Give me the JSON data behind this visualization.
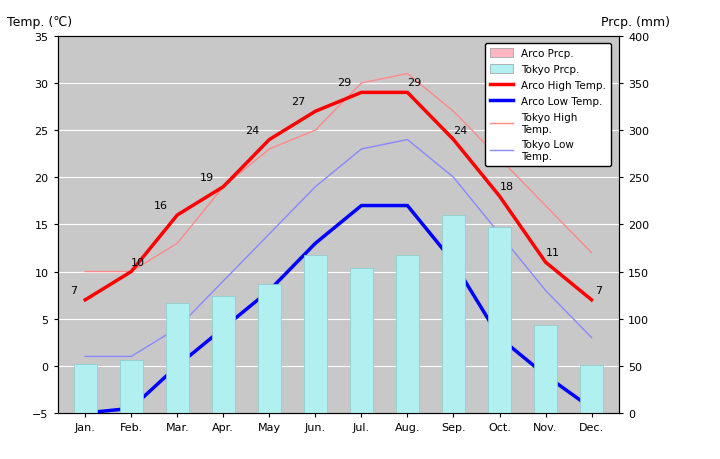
{
  "months": [
    "Jan.",
    "Feb.",
    "Mar.",
    "Apr.",
    "May",
    "Jun.",
    "Jul.",
    "Aug.",
    "Sep.",
    "Oct.",
    "Nov.",
    "Dec."
  ],
  "arco_high_temp": [
    7,
    10,
    16,
    19,
    24,
    27,
    29,
    29,
    24,
    18,
    11,
    7
  ],
  "arco_low_temp": [
    -5,
    -4.5,
    0,
    4,
    8,
    13,
    17,
    17,
    11,
    3,
    -1,
    -4.5
  ],
  "tokyo_high_temp": [
    10,
    10,
    13,
    19,
    23,
    25,
    30,
    31,
    27,
    22,
    17,
    12
  ],
  "tokyo_low_temp": [
    1,
    1,
    4,
    9,
    14,
    19,
    23,
    24,
    20,
    14,
    8,
    3
  ],
  "tokyo_prcp_mm": [
    52,
    56,
    117,
    124,
    137,
    168,
    154,
    168,
    210,
    197,
    93,
    51
  ],
  "plot_bg_color": "#c8c8c8",
  "outer_bg_color": "#ffffff",
  "arco_high_color": "#ff0000",
  "arco_low_color": "#0000ff",
  "tokyo_high_color": "#ff8888",
  "tokyo_low_color": "#8888ff",
  "arco_prcp_color": "#ffb6c1",
  "tokyo_prcp_color": "#b0f0f0",
  "temp_ylim": [
    -5,
    35
  ],
  "prcp_ylim": [
    0,
    400
  ],
  "title_left": "Temp. (℃)",
  "title_right": "Prcp. (mm)",
  "arco_high_label_offsets_x": [
    0,
    0,
    0,
    -3,
    -3,
    -4,
    -3,
    4,
    4,
    4,
    4,
    4
  ],
  "arco_high_label_offsets_y": [
    4,
    4,
    4,
    4,
    4,
    4,
    4,
    4,
    4,
    4,
    4,
    4
  ]
}
